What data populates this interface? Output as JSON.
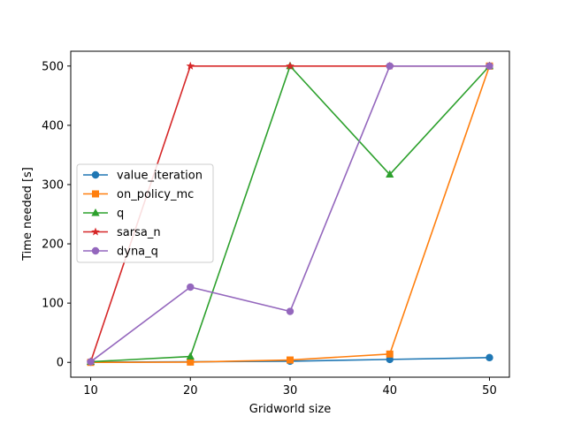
{
  "chart_data": {
    "type": "line",
    "title": "",
    "xlabel": "Gridworld size",
    "ylabel": "Time needed [s]",
    "x": [
      10,
      20,
      30,
      40,
      50
    ],
    "xticks": [
      "10",
      "20",
      "30",
      "40",
      "50"
    ],
    "yticks": [
      "0",
      "100",
      "200",
      "300",
      "400",
      "500"
    ],
    "xlim": [
      8,
      52
    ],
    "ylim": [
      -25,
      525
    ],
    "grid": false,
    "legend_position": "center-left",
    "series": [
      {
        "name": "value_iteration",
        "color": "#1f77b4",
        "marker": "circle",
        "values": [
          0.3,
          1,
          2,
          5,
          8
        ]
      },
      {
        "name": "on_policy_mc",
        "color": "#ff7f0e",
        "marker": "square",
        "values": [
          0,
          0.5,
          4,
          14,
          500
        ]
      },
      {
        "name": "q",
        "color": "#2ca02c",
        "marker": "triangle-up",
        "values": [
          1,
          10,
          500,
          317,
          500
        ]
      },
      {
        "name": "sarsa_n",
        "color": "#d62728",
        "marker": "star",
        "values": [
          1,
          500,
          500,
          500,
          500
        ]
      },
      {
        "name": "dyna_q",
        "color": "#9467bd",
        "marker": "circle",
        "values": [
          1,
          127,
          86,
          500,
          500
        ]
      }
    ]
  }
}
